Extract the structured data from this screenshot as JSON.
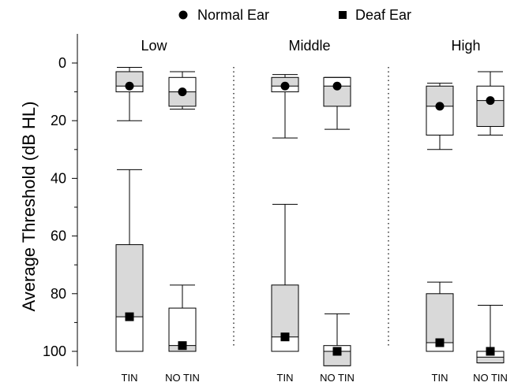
{
  "chart_data": {
    "type": "box",
    "ylabel": "Average Threshold (dB HL)",
    "yticks": [
      0,
      20,
      40,
      60,
      80,
      100
    ],
    "ylim": [
      -7,
      105
    ],
    "y_inverted": true,
    "legend": {
      "placement": "top-center",
      "entries": [
        {
          "name": "Normal Ear",
          "marker": "circle"
        },
        {
          "name": "Deaf Ear",
          "marker": "square"
        }
      ]
    },
    "panels": [
      "Low",
      "Middle",
      "High"
    ],
    "conditions": [
      "TIN",
      "NO TIN"
    ],
    "series": [
      {
        "name": "Normal Ear",
        "marker": "circle",
        "boxes": [
          {
            "panel": "Low",
            "condition": "TIN",
            "whisker_low": 1.5,
            "q1": 3,
            "median": 8,
            "q3": 10,
            "whisker_high": 20,
            "mean": 8,
            "shade": "upper"
          },
          {
            "panel": "Low",
            "condition": "NO TIN",
            "whisker_low": 3,
            "q1": 5,
            "median": 10,
            "q3": 15,
            "whisker_high": 16,
            "mean": 10,
            "shade": "lower"
          },
          {
            "panel": "Middle",
            "condition": "TIN",
            "whisker_low": 4,
            "q1": 5,
            "median": 8,
            "q3": 10,
            "whisker_high": 26,
            "mean": 8,
            "shade": "upper"
          },
          {
            "panel": "Middle",
            "condition": "NO TIN",
            "whisker_low": 5,
            "q1": 5,
            "median": 8,
            "q3": 15,
            "whisker_high": 23,
            "mean": 8,
            "shade": "lower"
          },
          {
            "panel": "High",
            "condition": "TIN",
            "whisker_low": 7,
            "q1": 8,
            "median": 15,
            "q3": 25,
            "whisker_high": 30,
            "mean": 15,
            "shade": "upper"
          },
          {
            "panel": "High",
            "condition": "NO TIN",
            "whisker_low": 3,
            "q1": 8,
            "median": 13,
            "q3": 22,
            "whisker_high": 25,
            "mean": 13,
            "shade": "lower"
          }
        ]
      },
      {
        "name": "Deaf Ear",
        "marker": "square",
        "boxes": [
          {
            "panel": "Low",
            "condition": "TIN",
            "whisker_low": 37,
            "q1": 63,
            "median": 88,
            "q3": 100,
            "whisker_high": 100,
            "mean": 88,
            "shade": "upper"
          },
          {
            "panel": "Low",
            "condition": "NO TIN",
            "whisker_low": 77,
            "q1": 85,
            "median": 98,
            "q3": 100,
            "whisker_high": 100,
            "mean": 98,
            "shade": "lower"
          },
          {
            "panel": "Middle",
            "condition": "TIN",
            "whisker_low": 49,
            "q1": 77,
            "median": 95,
            "q3": 100,
            "whisker_high": 100,
            "mean": 95,
            "shade": "upper"
          },
          {
            "panel": "Middle",
            "condition": "NO TIN",
            "whisker_low": 87,
            "q1": 98,
            "median": 100,
            "q3": 105,
            "whisker_high": 105,
            "mean": 100,
            "shade": "lower"
          },
          {
            "panel": "High",
            "condition": "TIN",
            "whisker_low": 76,
            "q1": 80,
            "median": 97,
            "q3": 100,
            "whisker_high": 100,
            "mean": 97,
            "shade": "upper"
          },
          {
            "panel": "High",
            "condition": "NO TIN",
            "whisker_low": 84,
            "q1": 100,
            "median": 102,
            "q3": 104,
            "whisker_high": 104,
            "mean": 100,
            "shade": "lower"
          }
        ]
      }
    ],
    "colors": {
      "box_fill": "#d9d9d9",
      "stroke": "#000000",
      "marker": "#000000"
    },
    "grid": false
  }
}
